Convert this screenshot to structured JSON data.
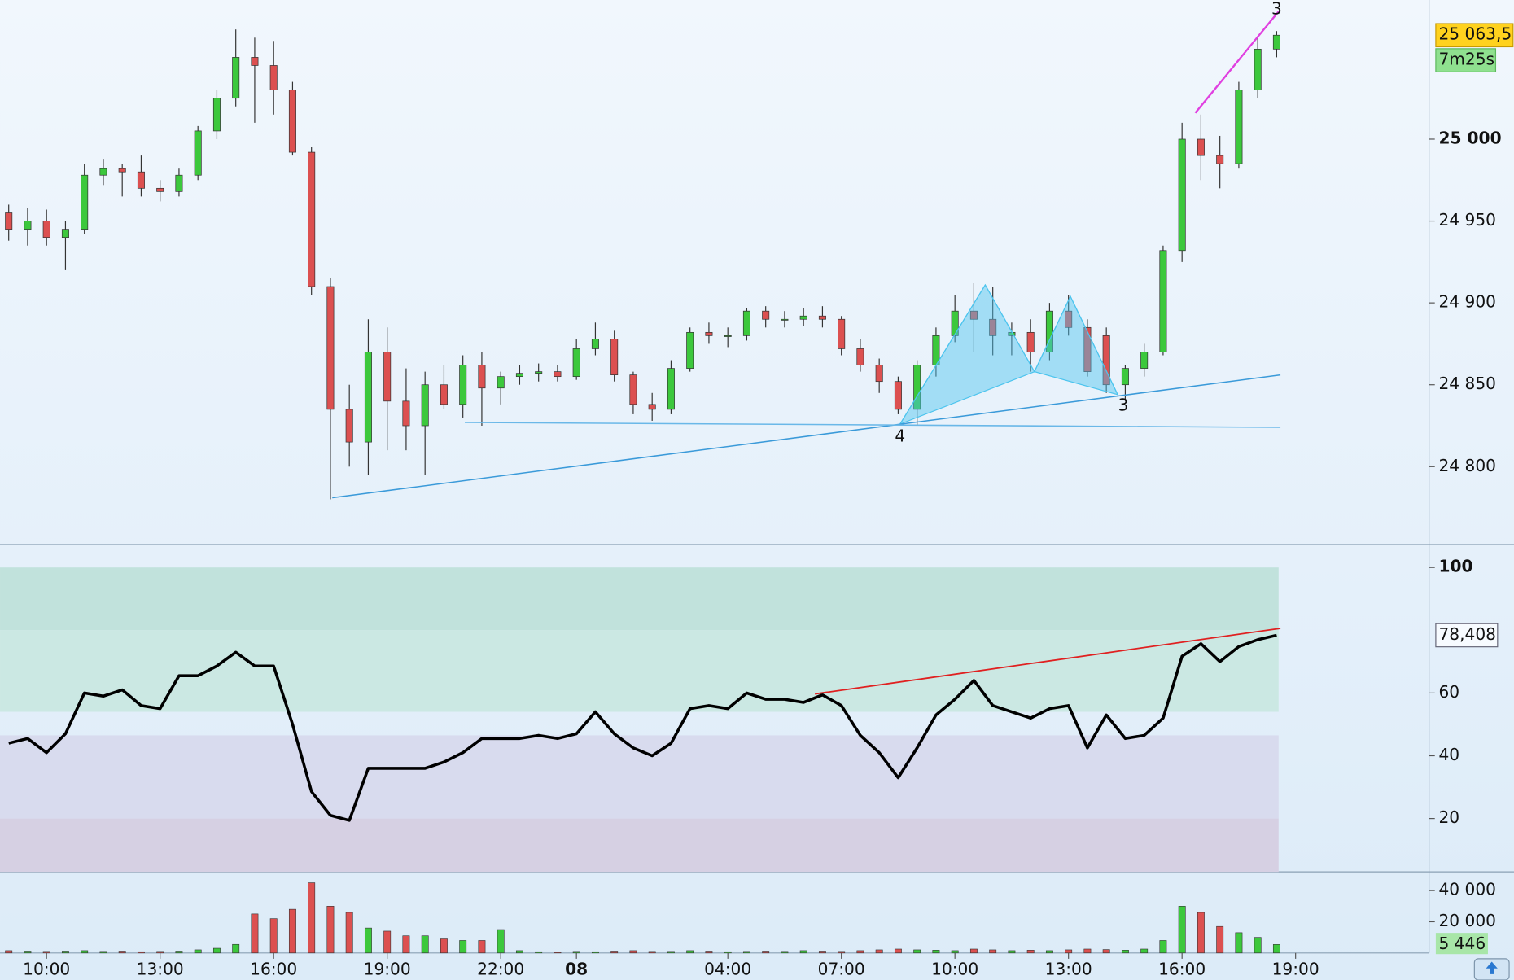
{
  "chart_data": [
    {
      "type": "candlestick",
      "x": [
        "09:00",
        "09:30",
        "10:00",
        "10:30",
        "11:00",
        "11:30",
        "12:00",
        "12:30",
        "13:00",
        "13:30",
        "14:00",
        "14:30",
        "15:00",
        "15:30",
        "16:00",
        "16:30",
        "17:00",
        "17:30",
        "18:00",
        "18:30",
        "19:00",
        "19:30",
        "20:00",
        "20:30",
        "21:00",
        "21:30",
        "22:00",
        "22:30",
        "23:00",
        "23:30",
        "00:00",
        "00:30",
        "01:00",
        "01:30",
        "02:00",
        "02:30",
        "03:00",
        "03:30",
        "04:00",
        "04:30",
        "05:00",
        "05:30",
        "06:00",
        "06:30",
        "07:00",
        "07:30",
        "08:00",
        "08:30",
        "09:00",
        "09:30",
        "10:00",
        "10:30",
        "11:00",
        "11:30",
        "12:00",
        "12:30",
        "13:00",
        "13:30",
        "14:00",
        "14:30",
        "15:00",
        "15:30",
        "16:00",
        "16:30",
        "17:00",
        "17:30",
        "18:00",
        "18:30",
        "19:00"
      ],
      "open": [
        24955,
        24945,
        24950,
        24940,
        24945,
        24978,
        24982,
        24980,
        24970,
        24968,
        24978,
        25005,
        25025,
        25050,
        25045,
        25030,
        24992,
        24910,
        24835,
        24815,
        24870,
        24840,
        24825,
        24850,
        24838,
        24862,
        24848,
        24855,
        24857,
        24858,
        24855,
        24872,
        24878,
        24856,
        24838,
        24835,
        24860,
        24882,
        24880,
        24880,
        24895,
        24890,
        24890,
        24892,
        24890,
        24872,
        24862,
        24852,
        24835,
        24862,
        24880,
        24895,
        24890,
        24880,
        24882,
        24870,
        24895,
        24885,
        24880,
        24850,
        24860,
        24870,
        24932,
        25000,
        24990,
        24985,
        25030,
        25055,
        null
      ],
      "high": [
        24960,
        24958,
        24957,
        24950,
        24985,
        24988,
        24985,
        24990,
        24975,
        24982,
        25008,
        25030,
        25067,
        25062,
        25060,
        25035,
        24995,
        24915,
        24850,
        24890,
        24885,
        24860,
        24858,
        24862,
        24868,
        24870,
        24858,
        24862,
        24863,
        24862,
        24878,
        24888,
        24883,
        24858,
        24845,
        24865,
        24885,
        24888,
        24885,
        24897,
        24898,
        24895,
        24897,
        24898,
        24892,
        24878,
        24866,
        24855,
        24865,
        24885,
        24905,
        24912,
        24910,
        24888,
        24890,
        24900,
        24905,
        24890,
        24885,
        24862,
        24875,
        24935,
        25010,
        25015,
        25002,
        25035,
        25062,
        25066,
        null
      ],
      "low": [
        24938,
        24935,
        24935,
        24920,
        24942,
        24972,
        24965,
        24965,
        24962,
        24965,
        24975,
        25000,
        25020,
        25010,
        25015,
        24990,
        24905,
        24780,
        24800,
        24795,
        24810,
        24810,
        24795,
        24835,
        24830,
        24825,
        24838,
        24850,
        24852,
        24852,
        24853,
        24868,
        24852,
        24832,
        24828,
        24832,
        24858,
        24875,
        24873,
        24877,
        24885,
        24885,
        24886,
        24885,
        24868,
        24858,
        24845,
        24832,
        24825,
        24855,
        24876,
        24870,
        24868,
        24868,
        24858,
        24865,
        24880,
        24855,
        24845,
        24840,
        24855,
        24868,
        24925,
        24975,
        24970,
        24982,
        25025,
        25050,
        null
      ],
      "close": [
        24945,
        24950,
        24940,
        24945,
        24978,
        24982,
        24980,
        24970,
        24968,
        24978,
        25005,
        25025,
        25050,
        25045,
        25030,
        24992,
        24910,
        24835,
        24815,
        24870,
        24840,
        24825,
        24850,
        24838,
        24862,
        24848,
        24855,
        24857,
        24858,
        24855,
        24872,
        24878,
        24856,
        24838,
        24835,
        24860,
        24882,
        24880,
        24880,
        24895,
        24890,
        24890,
        24892,
        24890,
        24872,
        24862,
        24852,
        24835,
        24862,
        24880,
        24895,
        24890,
        24880,
        24882,
        24870,
        24895,
        24885,
        24858,
        24850,
        24860,
        24870,
        24932,
        25000,
        24990,
        24985,
        25030,
        25055,
        25063.5,
        null
      ],
      "up_color": "#3cc83c",
      "down_color": "#dc5050",
      "ylim": [
        24753,
        25085
      ],
      "yticks": [
        {
          "value": 24800,
          "label": "24 800"
        },
        {
          "value": 24850,
          "label": "24 850"
        },
        {
          "value": 24900,
          "label": "24 900"
        },
        {
          "value": 24950,
          "label": "24 950"
        },
        {
          "value": 25000,
          "label": "25 000",
          "bold": true
        }
      ],
      "xticks": [
        {
          "value": "10:00",
          "label": "10:00"
        },
        {
          "value": "13:00",
          "label": "13:00"
        },
        {
          "value": "16:00",
          "label": "16:00"
        },
        {
          "value": "19:00",
          "label": "19:00"
        },
        {
          "value": "22:00",
          "label": "22:00"
        },
        {
          "value": "00:00",
          "label": "08",
          "bold": true
        },
        {
          "value": "04:00",
          "label": "04:00"
        },
        {
          "value": "07:00",
          "label": "07:00"
        },
        {
          "value": "10:00",
          "label": "10:00"
        },
        {
          "value": "13:00",
          "label": "13:00"
        },
        {
          "value": "16:00",
          "label": "16:00"
        },
        {
          "value": "19:00",
          "label": "19:00"
        }
      ],
      "last_label": {
        "value": 25063.5,
        "label": "25 063,5"
      },
      "countdown": "7m25s",
      "trendlines": [
        {
          "color": "#3a9ad9",
          "points": [
            [
              17.1,
              24781
            ],
            [
              67.2,
              24856
            ]
          ]
        },
        {
          "color": "#6ab8e8",
          "points": [
            [
              24.1,
              24827
            ],
            [
              67.2,
              24824
            ]
          ]
        },
        {
          "color": "#e040e0",
          "points": [
            [
              62.7,
              25016
            ],
            [
              67.1,
              25078
            ]
          ]
        }
      ],
      "pattern": {
        "color": "#4cc4ee",
        "points": [
          [
            47.1,
            24826
          ],
          [
            51.6,
            24911
          ],
          [
            54.2,
            24858
          ],
          [
            56.1,
            24904
          ],
          [
            58.6,
            24844
          ]
        ]
      },
      "pattern_labels": [
        {
          "text": "4",
          "at": [
            47.1,
            24818
          ],
          "color": "#4aa8e0"
        },
        {
          "text": "3",
          "at": [
            58.9,
            24837
          ],
          "color": "#4aa8e0"
        },
        {
          "text": "3",
          "at": [
            67.0,
            25079
          ],
          "color": "#e040e0"
        }
      ]
    },
    {
      "type": "line",
      "values": [
        44,
        45.5,
        41,
        47,
        60,
        59,
        61,
        56,
        55,
        65.5,
        65.5,
        68.6,
        73,
        68.6,
        68.6,
        50,
        28.6,
        21,
        19.4,
        36,
        36,
        36,
        36,
        38,
        41,
        45.5,
        45.5,
        45.5,
        46.5,
        45.5,
        47,
        54,
        47,
        42.5,
        40,
        44,
        55,
        56,
        55,
        60,
        58,
        58,
        57,
        59.4,
        56,
        46.5,
        41,
        33,
        42.5,
        53,
        58,
        64,
        56,
        54,
        52,
        55,
        56,
        42.5,
        53,
        45.5,
        46.5,
        52,
        71.7,
        75.7,
        70,
        74.8,
        77,
        78.408,
        null
      ],
      "color": "#000000",
      "ylim": [
        3,
        107
      ],
      "yticks": [
        20,
        40,
        60,
        {
          "value": 100,
          "label": "100",
          "bold": true
        }
      ],
      "bands": [
        {
          "from": 80,
          "to": 100,
          "color": "#c1e2dc"
        },
        {
          "from": 54,
          "to": 80,
          "color": "#cbe8e3"
        },
        {
          "from": 20,
          "to": 46.5,
          "color": "#d8dbee"
        },
        {
          "from": 3,
          "to": 20,
          "color": "#d6d0e3"
        }
      ],
      "trendline": {
        "color": "#e02020",
        "points": [
          [
            42.6,
            59.7
          ],
          [
            67.2,
            80.6
          ]
        ]
      },
      "last_label": {
        "value": 78.408,
        "label": "78,408"
      }
    },
    {
      "type": "bar",
      "values": [
        1500,
        1200,
        1000,
        1200,
        1500,
        1000,
        1200,
        800,
        1000,
        1200,
        2000,
        3000,
        5500,
        25000,
        22000,
        28000,
        45000,
        30000,
        26000,
        16000,
        14000,
        11000,
        11000,
        9000,
        8000,
        8000,
        15000,
        1500,
        800,
        500,
        1000,
        800,
        1200,
        1500,
        1000,
        1000,
        1500,
        1200,
        800,
        1000,
        1200,
        1000,
        1500,
        1200,
        1000,
        1500,
        2000,
        2500,
        2000,
        1800,
        1500,
        2500,
        2000,
        1500,
        1800,
        1500,
        2000,
        2500,
        2200,
        1800,
        2500,
        8000,
        30000,
        26000,
        17000,
        13000,
        10000,
        5446,
        null
      ],
      "ylim": [
        0,
        52000
      ],
      "yticks": [
        {
          "value": 20000,
          "label": "20 000"
        },
        {
          "value": 40000,
          "label": "40 000"
        }
      ],
      "last_label": {
        "value": 5446,
        "label": "5 446"
      }
    }
  ]
}
